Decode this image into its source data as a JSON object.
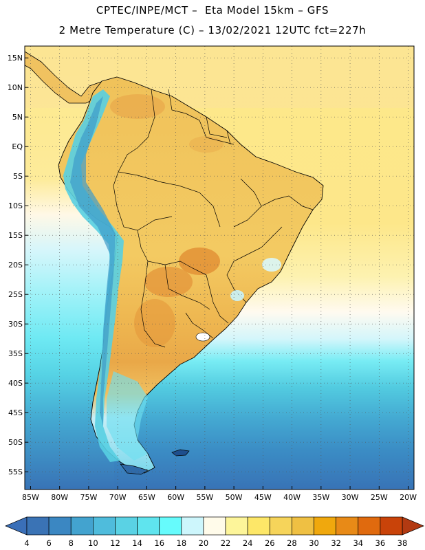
{
  "title": {
    "line1": "CPTEC/INPE/MCT –  Eta Model 15km – GFS",
    "line2": "2 Metre Temperature (C) – 13/02/2021 12UTC fct=227h"
  },
  "map": {
    "lon_range": [
      -86,
      -19
    ],
    "lat_range": [
      -58,
      17
    ],
    "lat_ticks": [
      {
        "value": 15,
        "label": "15N"
      },
      {
        "value": 10,
        "label": "10N"
      },
      {
        "value": 5,
        "label": "5N"
      },
      {
        "value": 0,
        "label": "EQ"
      },
      {
        "value": -5,
        "label": "5S"
      },
      {
        "value": -10,
        "label": "10S"
      },
      {
        "value": -15,
        "label": "15S"
      },
      {
        "value": -20,
        "label": "20S"
      },
      {
        "value": -25,
        "label": "25S"
      },
      {
        "value": -30,
        "label": "30S"
      },
      {
        "value": -35,
        "label": "35S"
      },
      {
        "value": -40,
        "label": "40S"
      },
      {
        "value": -45,
        "label": "45S"
      },
      {
        "value": -50,
        "label": "50S"
      },
      {
        "value": -55,
        "label": "55S"
      }
    ],
    "lon_ticks": [
      {
        "value": -85,
        "label": "85W"
      },
      {
        "value": -80,
        "label": "80W"
      },
      {
        "value": -75,
        "label": "75W"
      },
      {
        "value": -70,
        "label": "70W"
      },
      {
        "value": -65,
        "label": "65W"
      },
      {
        "value": -60,
        "label": "60W"
      },
      {
        "value": -55,
        "label": "55W"
      },
      {
        "value": -50,
        "label": "50W"
      },
      {
        "value": -45,
        "label": "45W"
      },
      {
        "value": -40,
        "label": "40W"
      },
      {
        "value": -35,
        "label": "35W"
      },
      {
        "value": -30,
        "label": "30W"
      },
      {
        "value": -25,
        "label": "25W"
      },
      {
        "value": -20,
        "label": "20W"
      }
    ]
  },
  "colorbar": {
    "low_color": "#3a6fb8",
    "high_color": "#b23a12",
    "colors": [
      "#3a73b5",
      "#3b87c2",
      "#43a3cf",
      "#4fbcdc",
      "#5ad2e4",
      "#5fe4ee",
      "#66fbfc",
      "#cdf6fc",
      "#fffbea",
      "#fdf59a",
      "#fde768",
      "#f6d45a",
      "#efc043",
      "#f0a80d",
      "#e88a17",
      "#e06a0e",
      "#c94309"
    ],
    "labels": [
      "4",
      "6",
      "8",
      "10",
      "12",
      "14",
      "16",
      "18",
      "20",
      "22",
      "24",
      "26",
      "28",
      "30",
      "32",
      "34",
      "36",
      "38"
    ]
  }
}
